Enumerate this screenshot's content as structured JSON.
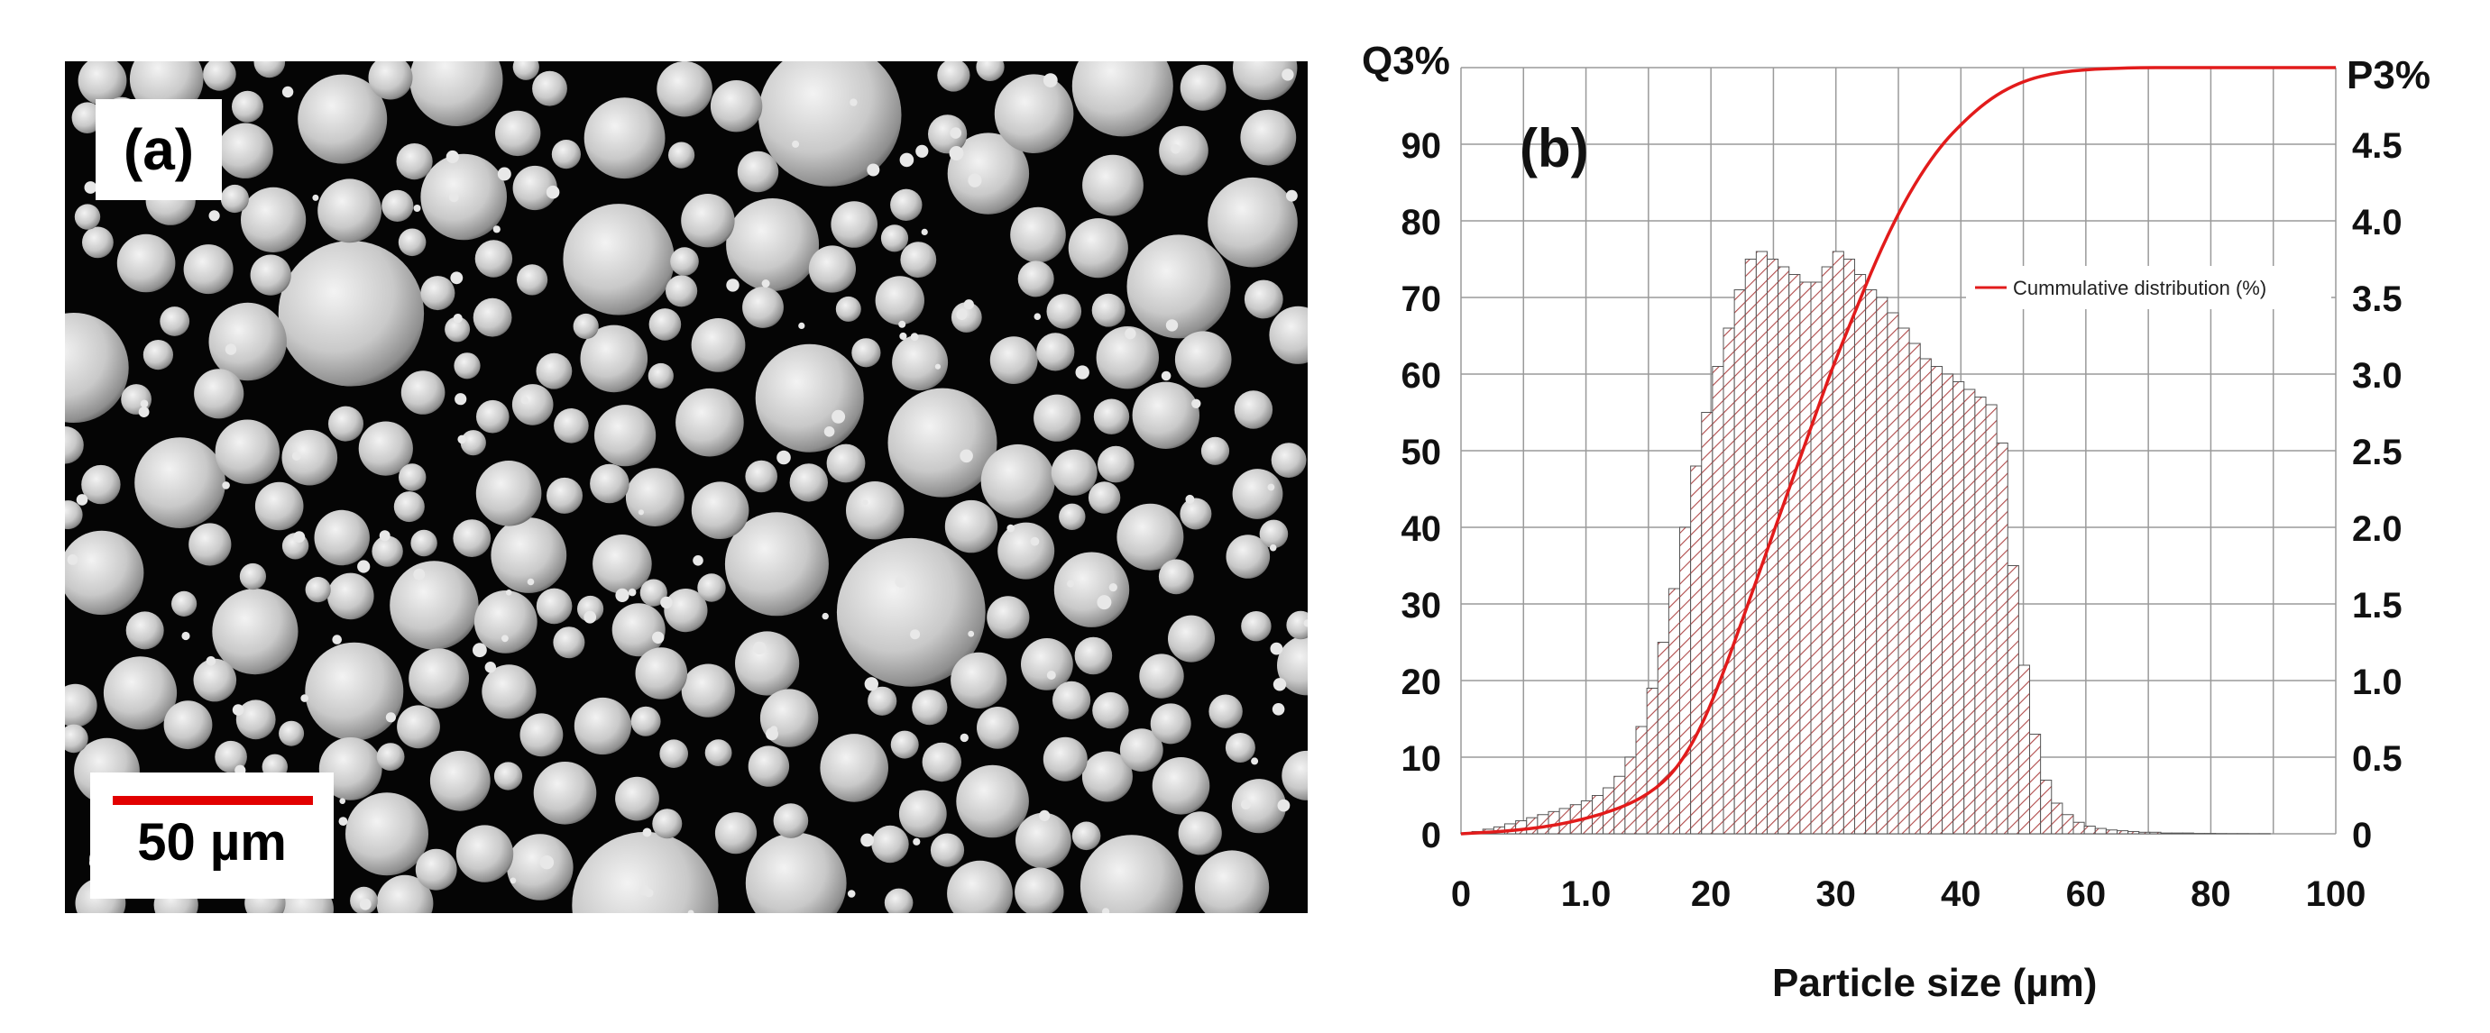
{
  "panel_a": {
    "label": "(a)",
    "scale_bar_text": "50 µm",
    "scale_bar_color": "#e20000"
  },
  "chart_data": {
    "type": "bar",
    "panel_label": "(b)",
    "title": "",
    "xlabel": "Particle size (µm)",
    "ylabel_left": "Q3%",
    "ylabel_right": "P3%",
    "x_tick_labels": [
      "0",
      "1.0",
      "20",
      "30",
      "40",
      "60",
      "80",
      "100"
    ],
    "y_left_ticks": [
      "0",
      "10",
      "20",
      "30",
      "40",
      "50",
      "60",
      "70",
      "80",
      "90"
    ],
    "y_right_ticks": [
      "0",
      "0.5",
      "1.0",
      "1.5",
      "2.0",
      "2.5",
      "3.0",
      "3.5",
      "4.0",
      "4.5"
    ],
    "ylim": [
      0,
      100
    ],
    "grid": true,
    "bar_color": "#a05050",
    "line_color": "#e21b1b",
    "histogram": {
      "name": "",
      "x": [
        1,
        2,
        3,
        4,
        5,
        6,
        7,
        8,
        9,
        10,
        11,
        12,
        13,
        14,
        15,
        16,
        17,
        18,
        19,
        20,
        21,
        22,
        23,
        24,
        25,
        26,
        27,
        28,
        29,
        30,
        31,
        32,
        33,
        34,
        35,
        36,
        37,
        38,
        39,
        40,
        41,
        42,
        43,
        44,
        45,
        46,
        47,
        48,
        49,
        50,
        51,
        52,
        53,
        54,
        55,
        56,
        57,
        58,
        59,
        60,
        61,
        62,
        63,
        64,
        65,
        66,
        67,
        68,
        69,
        70,
        71,
        72,
        73,
        74,
        75,
        76,
        77,
        78,
        79,
        80
      ],
      "values": [
        0.1,
        0.3,
        0.6,
        0.9,
        1.3,
        1.7,
        2.1,
        2.5,
        2.9,
        3.3,
        3.8,
        4.3,
        5.0,
        6.0,
        7.5,
        10,
        14,
        19,
        25,
        32,
        40,
        48,
        55,
        61,
        66,
        71,
        75,
        76,
        75,
        74,
        73,
        72,
        72,
        74,
        76,
        75,
        73,
        71,
        70,
        68,
        66,
        64,
        62,
        61,
        60,
        59,
        58,
        57,
        56,
        51,
        35,
        22,
        13,
        7,
        4,
        2.5,
        1.5,
        1,
        0.7,
        0.5,
        0.4,
        0.3,
        0.2,
        0.2,
        0.1,
        0.1,
        0.1,
        0.05,
        0.05,
        0.03,
        0.02,
        0.02,
        0.01,
        0.01,
        0,
        0,
        0,
        0,
        0,
        0
      ]
    },
    "series": [
      {
        "name": "Cummulative distribution (%)",
        "x": [
          0,
          5,
          10,
          15,
          18,
          20,
          22,
          24,
          26,
          28,
          30,
          32,
          34,
          36,
          38,
          40,
          42,
          44,
          46,
          48,
          50,
          52,
          54,
          56,
          58,
          60,
          62,
          65,
          70,
          80,
          100
        ],
        "values": [
          0,
          0.4,
          1.4,
          3.5,
          6,
          9,
          14,
          21,
          29,
          37,
          45,
          53,
          61,
          68,
          75,
          81,
          86,
          90,
          93,
          95.5,
          97.3,
          98.5,
          99.2,
          99.6,
          99.8,
          99.9,
          100,
          100,
          100,
          100,
          100
        ]
      }
    ]
  }
}
